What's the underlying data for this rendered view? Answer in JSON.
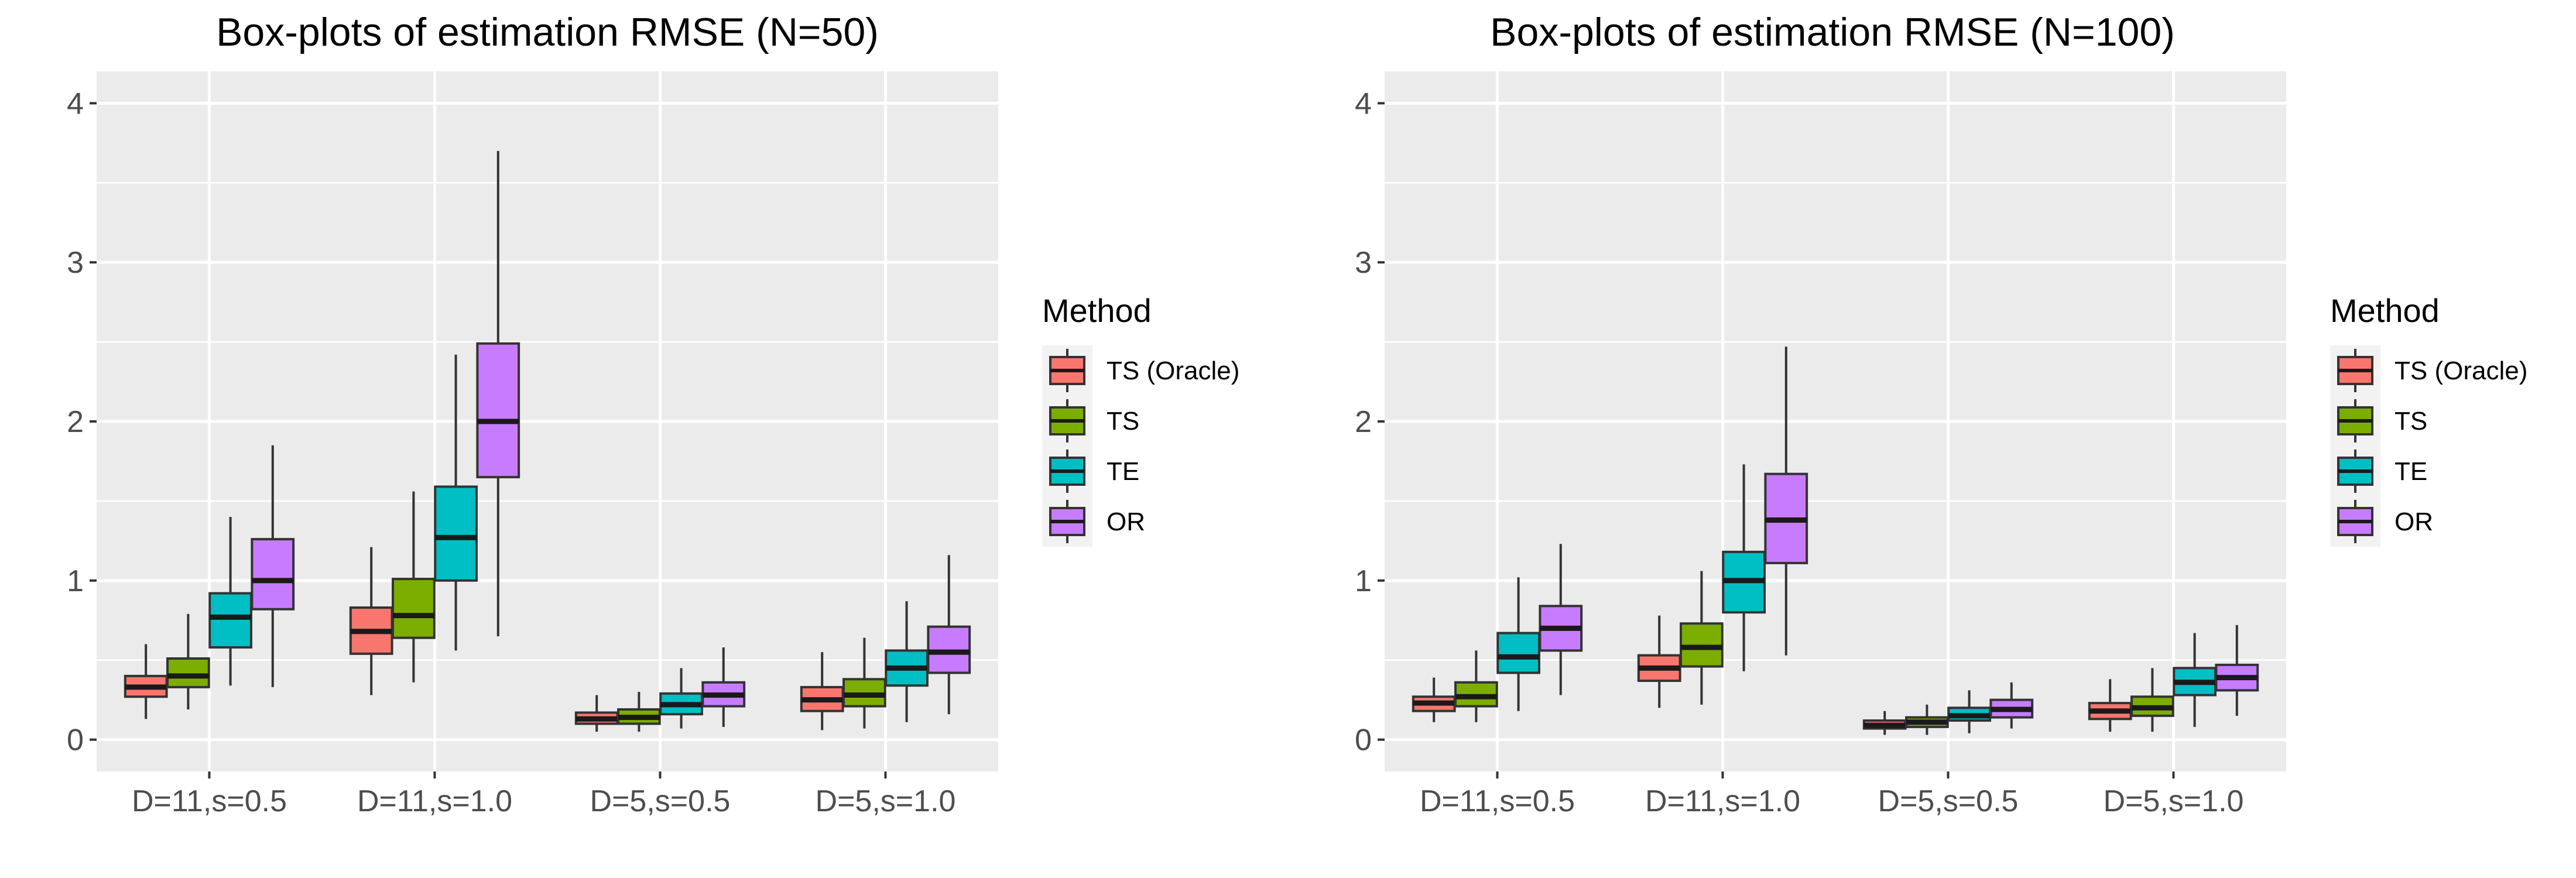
{
  "chart_data": [
    {
      "type": "box",
      "title": "Box-plots of estimation RMSE (N=50)",
      "xlabel": "",
      "ylabel": "",
      "categories": [
        "D=11,s=0.5",
        "D=11,s=1.0",
        "D=5,s=0.5",
        "D=5,s=1.0"
      ],
      "yticks": [
        0,
        1,
        2,
        3,
        4
      ],
      "ylim": [
        -0.2,
        4.2
      ],
      "grid": true,
      "legend_position": "right",
      "series": [
        {
          "name": "TS (Oracle)",
          "color": "#F8766D",
          "boxes": [
            {
              "whisker_low": 0.13,
              "q1": 0.27,
              "median": 0.33,
              "q3": 0.4,
              "whisker_high": 0.6
            },
            {
              "whisker_low": 0.28,
              "q1": 0.54,
              "median": 0.68,
              "q3": 0.83,
              "whisker_high": 1.21
            },
            {
              "whisker_low": 0.05,
              "q1": 0.1,
              "median": 0.13,
              "q3": 0.17,
              "whisker_high": 0.28
            },
            {
              "whisker_low": 0.06,
              "q1": 0.18,
              "median": 0.25,
              "q3": 0.33,
              "whisker_high": 0.55
            }
          ]
        },
        {
          "name": "TS",
          "color": "#7CAE00",
          "boxes": [
            {
              "whisker_low": 0.19,
              "q1": 0.33,
              "median": 0.4,
              "q3": 0.51,
              "whisker_high": 0.79
            },
            {
              "whisker_low": 0.36,
              "q1": 0.64,
              "median": 0.78,
              "q3": 1.01,
              "whisker_high": 1.56
            },
            {
              "whisker_low": 0.05,
              "q1": 0.1,
              "median": 0.14,
              "q3": 0.19,
              "whisker_high": 0.3
            },
            {
              "whisker_low": 0.07,
              "q1": 0.21,
              "median": 0.28,
              "q3": 0.38,
              "whisker_high": 0.64
            }
          ]
        },
        {
          "name": "TE",
          "color": "#00BFC4",
          "boxes": [
            {
              "whisker_low": 0.34,
              "q1": 0.58,
              "median": 0.77,
              "q3": 0.92,
              "whisker_high": 1.4
            },
            {
              "whisker_low": 0.56,
              "q1": 1.0,
              "median": 1.27,
              "q3": 1.59,
              "whisker_high": 2.42
            },
            {
              "whisker_low": 0.07,
              "q1": 0.16,
              "median": 0.22,
              "q3": 0.29,
              "whisker_high": 0.45
            },
            {
              "whisker_low": 0.11,
              "q1": 0.34,
              "median": 0.45,
              "q3": 0.56,
              "whisker_high": 0.87
            }
          ]
        },
        {
          "name": "OR",
          "color": "#C77CFF",
          "boxes": [
            {
              "whisker_low": 0.33,
              "q1": 0.82,
              "median": 1.0,
              "q3": 1.26,
              "whisker_high": 1.85
            },
            {
              "whisker_low": 0.65,
              "q1": 1.65,
              "median": 2.0,
              "q3": 2.49,
              "whisker_high": 3.7
            },
            {
              "whisker_low": 0.08,
              "q1": 0.21,
              "median": 0.28,
              "q3": 0.36,
              "whisker_high": 0.58
            },
            {
              "whisker_low": 0.16,
              "q1": 0.42,
              "median": 0.55,
              "q3": 0.71,
              "whisker_high": 1.16
            }
          ]
        }
      ]
    },
    {
      "type": "box",
      "title": "Box-plots of estimation RMSE (N=100)",
      "xlabel": "",
      "ylabel": "",
      "categories": [
        "D=11,s=0.5",
        "D=11,s=1.0",
        "D=5,s=0.5",
        "D=5,s=1.0"
      ],
      "yticks": [
        0,
        1,
        2,
        3,
        4
      ],
      "ylim": [
        -0.2,
        4.2
      ],
      "grid": true,
      "legend_position": "right",
      "series": [
        {
          "name": "TS (Oracle)",
          "color": "#F8766D",
          "boxes": [
            {
              "whisker_low": 0.11,
              "q1": 0.18,
              "median": 0.23,
              "q3": 0.27,
              "whisker_high": 0.39
            },
            {
              "whisker_low": 0.2,
              "q1": 0.37,
              "median": 0.45,
              "q3": 0.53,
              "whisker_high": 0.78
            },
            {
              "whisker_low": 0.03,
              "q1": 0.07,
              "median": 0.09,
              "q3": 0.12,
              "whisker_high": 0.18
            },
            {
              "whisker_low": 0.05,
              "q1": 0.13,
              "median": 0.18,
              "q3": 0.23,
              "whisker_high": 0.38
            }
          ]
        },
        {
          "name": "TS",
          "color": "#7CAE00",
          "boxes": [
            {
              "whisker_low": 0.11,
              "q1": 0.21,
              "median": 0.27,
              "q3": 0.36,
              "whisker_high": 0.56
            },
            {
              "whisker_low": 0.22,
              "q1": 0.46,
              "median": 0.58,
              "q3": 0.73,
              "whisker_high": 1.06
            },
            {
              "whisker_low": 0.03,
              "q1": 0.08,
              "median": 0.11,
              "q3": 0.14,
              "whisker_high": 0.22
            },
            {
              "whisker_low": 0.05,
              "q1": 0.15,
              "median": 0.2,
              "q3": 0.27,
              "whisker_high": 0.45
            }
          ]
        },
        {
          "name": "TE",
          "color": "#00BFC4",
          "boxes": [
            {
              "whisker_low": 0.18,
              "q1": 0.42,
              "median": 0.52,
              "q3": 0.67,
              "whisker_high": 1.02
            },
            {
              "whisker_low": 0.43,
              "q1": 0.8,
              "median": 1.0,
              "q3": 1.18,
              "whisker_high": 1.73
            },
            {
              "whisker_low": 0.04,
              "q1": 0.12,
              "median": 0.15,
              "q3": 0.2,
              "whisker_high": 0.31
            },
            {
              "whisker_low": 0.08,
              "q1": 0.28,
              "median": 0.36,
              "q3": 0.45,
              "whisker_high": 0.67
            }
          ]
        },
        {
          "name": "OR",
          "color": "#C77CFF",
          "boxes": [
            {
              "whisker_low": 0.28,
              "q1": 0.56,
              "median": 0.7,
              "q3": 0.84,
              "whisker_high": 1.23
            },
            {
              "whisker_low": 0.53,
              "q1": 1.11,
              "median": 1.38,
              "q3": 1.67,
              "whisker_high": 2.47
            },
            {
              "whisker_low": 0.07,
              "q1": 0.14,
              "median": 0.19,
              "q3": 0.25,
              "whisker_high": 0.36
            },
            {
              "whisker_low": 0.15,
              "q1": 0.31,
              "median": 0.39,
              "q3": 0.47,
              "whisker_high": 0.72
            }
          ]
        }
      ]
    }
  ],
  "legend": {
    "title": "Method",
    "entries": [
      "TS (Oracle)",
      "TS",
      "TE",
      "OR"
    ]
  }
}
